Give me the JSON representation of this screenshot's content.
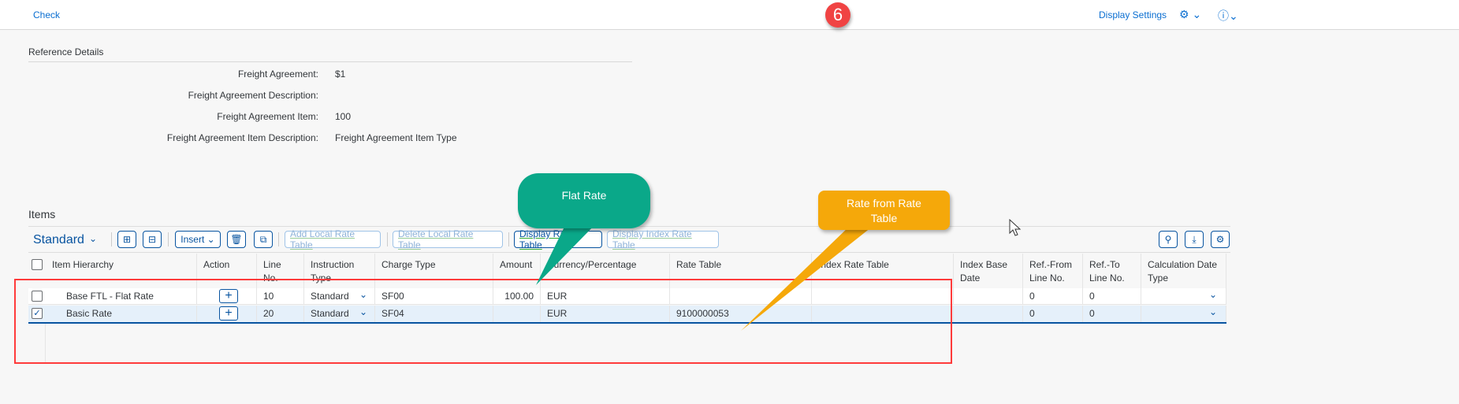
{
  "topbar": {
    "check": "Check",
    "display_settings": "Display Settings",
    "step_badge": "6"
  },
  "reference": {
    "title": "Reference Details",
    "fields": [
      {
        "label": "Freight Agreement:",
        "value": "$1"
      },
      {
        "label": "Freight Agreement Description:",
        "value": ""
      },
      {
        "label": "Freight Agreement Item:",
        "value": "100"
      },
      {
        "label": "Freight Agreement Item Description:",
        "value": "Freight Agreement Item Type"
      }
    ]
  },
  "items": {
    "title": "Items",
    "variant": "Standard",
    "insert": "Insert",
    "buttons": {
      "add_local": "Add Local Rate Table",
      "delete_local": "Delete Local Rate Table",
      "display_rate": "Display Rate Table",
      "display_index": "Display Index Rate Table"
    },
    "columns": [
      "Item Hierarchy",
      "Action",
      "Line No.",
      "Instruction Type",
      "Charge Type",
      "Amount",
      "Currency/Percentage",
      "Rate Table",
      "Index Rate Table",
      "Index Base Date",
      "Ref.-From Line No.",
      "Ref.-To Line No.",
      "Calculation Date Type"
    ],
    "rows": [
      {
        "selected": false,
        "hierarchy": "Base FTL - Flat Rate",
        "line": "10",
        "instruction": "Standard",
        "charge": "SF00",
        "amount": "100.00",
        "currency": "EUR",
        "rate_table": "",
        "index_rate_table": "",
        "index_base_date": "",
        "ref_from": "0",
        "ref_to": "0",
        "calc_date_type": ""
      },
      {
        "selected": true,
        "hierarchy": "Basic Rate",
        "line": "20",
        "instruction": "Standard",
        "charge": "SF04",
        "amount": "",
        "currency": "EUR",
        "rate_table": "9100000053",
        "index_rate_table": "",
        "index_base_date": "",
        "ref_from": "0",
        "ref_to": "0",
        "calc_date_type": ""
      }
    ]
  },
  "callouts": {
    "flat": "Flat Rate",
    "rate_table": "Rate from Rate Table"
  },
  "colors": {
    "accent": "#0854a0",
    "callout_green": "#0aa889",
    "callout_orange": "#f5a80a",
    "highlight_red": "#ff3b3b"
  }
}
